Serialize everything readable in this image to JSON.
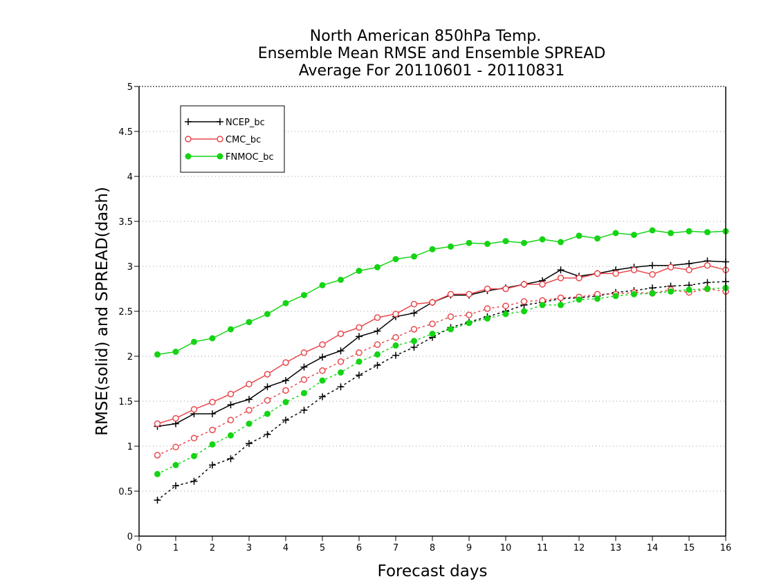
{
  "chart_data": {
    "type": "line",
    "title_lines": [
      "North American 850hPa Temp.",
      "Ensemble Mean RMSE and Ensemble SPREAD",
      "Average For 20110601 - 20110831"
    ],
    "xlabel": "Forecast days",
    "ylabel": "RMSE(solid) and SPREAD(dash)",
    "xlim": [
      0,
      16
    ],
    "ylim": [
      0,
      5
    ],
    "x_ticks": [
      "0",
      "1",
      "2",
      "3",
      "4",
      "5",
      "6",
      "7",
      "8",
      "9",
      "10",
      "11",
      "12",
      "13",
      "14",
      "15",
      "16"
    ],
    "y_ticks": [
      "0",
      "0.5",
      "1",
      "1.5",
      "2",
      "2.5",
      "3",
      "3.5",
      "4",
      "4.5",
      "5"
    ],
    "grid": "horizontal dotted",
    "legend_position": "top-left",
    "x": [
      0.5,
      1,
      1.5,
      2,
      2.5,
      3,
      3.5,
      4,
      4.5,
      5,
      5.5,
      6,
      6.5,
      7,
      7.5,
      8,
      8.5,
      9,
      9.5,
      10,
      10.5,
      11,
      11.5,
      12,
      12.5,
      13,
      13.5,
      14,
      14.5,
      15,
      15.5,
      16
    ],
    "series": [
      {
        "name": "NCEP_bc",
        "color": "#000000",
        "marker": "plus",
        "rmse": [
          1.22,
          1.25,
          1.36,
          1.36,
          1.46,
          1.52,
          1.66,
          1.73,
          1.88,
          1.99,
          2.06,
          2.22,
          2.28,
          2.44,
          2.48,
          2.6,
          2.68,
          2.68,
          2.73,
          2.76,
          2.8,
          2.84,
          2.96,
          2.89,
          2.92,
          2.96,
          2.99,
          3.01,
          3.01,
          3.03,
          3.06,
          3.05
        ],
        "spread": [
          0.4,
          0.56,
          0.61,
          0.79,
          0.86,
          1.03,
          1.13,
          1.29,
          1.4,
          1.55,
          1.66,
          1.79,
          1.9,
          2.01,
          2.1,
          2.21,
          2.32,
          2.38,
          2.44,
          2.5,
          2.57,
          2.6,
          2.64,
          2.65,
          2.67,
          2.71,
          2.73,
          2.76,
          2.78,
          2.79,
          2.82,
          2.83
        ]
      },
      {
        "name": "CMC_bc",
        "color": "#e8474c",
        "marker": "open-circle",
        "rmse": [
          1.25,
          1.31,
          1.41,
          1.49,
          1.58,
          1.69,
          1.8,
          1.93,
          2.04,
          2.13,
          2.25,
          2.32,
          2.43,
          2.47,
          2.58,
          2.6,
          2.69,
          2.69,
          2.75,
          2.75,
          2.8,
          2.8,
          2.87,
          2.87,
          2.92,
          2.92,
          2.96,
          2.91,
          2.99,
          2.96,
          3.01,
          2.96
        ],
        "spread": [
          0.9,
          0.99,
          1.09,
          1.18,
          1.29,
          1.4,
          1.51,
          1.62,
          1.74,
          1.84,
          1.94,
          2.04,
          2.13,
          2.21,
          2.3,
          2.36,
          2.44,
          2.46,
          2.53,
          2.56,
          2.61,
          2.62,
          2.65,
          2.66,
          2.69,
          2.69,
          2.71,
          2.7,
          2.74,
          2.71,
          2.75,
          2.72
        ]
      },
      {
        "name": "FNMOC_bc",
        "color": "#14d414",
        "marker": "filled-circle",
        "rmse": [
          2.02,
          2.05,
          2.16,
          2.2,
          2.3,
          2.38,
          2.47,
          2.59,
          2.68,
          2.79,
          2.85,
          2.95,
          2.99,
          3.08,
          3.11,
          3.19,
          3.22,
          3.26,
          3.25,
          3.28,
          3.26,
          3.3,
          3.27,
          3.34,
          3.31,
          3.37,
          3.35,
          3.4,
          3.37,
          3.39,
          3.38,
          3.39
        ],
        "spread": [
          0.69,
          0.79,
          0.89,
          1.02,
          1.12,
          1.25,
          1.36,
          1.49,
          1.59,
          1.73,
          1.82,
          1.94,
          2.02,
          2.12,
          2.17,
          2.25,
          2.3,
          2.37,
          2.42,
          2.47,
          2.5,
          2.57,
          2.57,
          2.63,
          2.64,
          2.67,
          2.69,
          2.7,
          2.72,
          2.74,
          2.75,
          2.76
        ]
      }
    ]
  }
}
